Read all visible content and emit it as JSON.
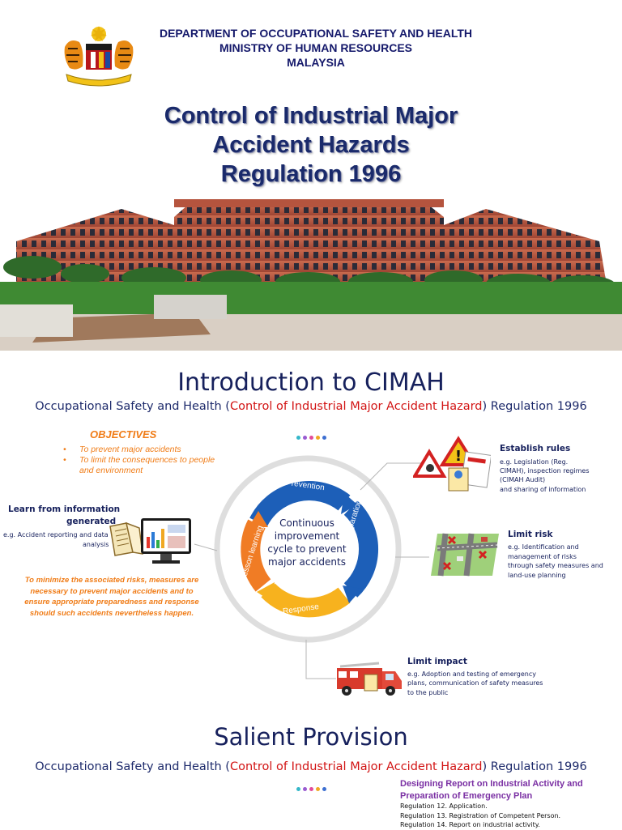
{
  "header": {
    "dept_line1": "DEPARTMENT OF OCCUPATIONAL SAFETY AND HEALTH",
    "dept_line2": "MINISTRY OF HUMAN RESOURCES",
    "dept_line3": "MALAYSIA",
    "title_line1": "Control of Industrial Major",
    "title_line2": "Accident Hazards",
    "title_line3": "Regulation 1996"
  },
  "intro": {
    "heading": "Introduction to CIMAH",
    "subtitle_pre": "Occupational Safety and Health (",
    "subtitle_red": "Control of Industrial Major Accident Hazard",
    "subtitle_post": ") Regulation 1996",
    "objectives_title": "OBJECTIVES",
    "objectives": [
      "To prevent major accidents",
      "To limit the consequences to people and environment"
    ],
    "minimize_text": "To minimize the associated risks, measures are necessary to prevent major accidents and to ensure appropriate preparedness and response should such accidents nevertheless happen.",
    "cycle_center": "Continuous improvement cycle to prevent major accidents",
    "cycle_labels": {
      "prevention": "Prevention",
      "preparation": "Preparation",
      "response": "Response",
      "lesson": "Lesson learning"
    },
    "learn_title_1": "Learn from information",
    "learn_title_2": "generated",
    "learn_text_1": "e.g. Accident reporting and data",
    "learn_text_2": "analysis",
    "establish_title": "Establish rules",
    "establish_text": [
      "e.g. Legislation (Reg.",
      "CIMAH), inspection regimes",
      "(CIMAH Audit)",
      "and sharing of information"
    ],
    "limit_risk_title": "Limit risk",
    "limit_risk_text": [
      "e.g. Identification and",
      "management of risks",
      "through safety measures and",
      "land-use planning"
    ],
    "limit_impact_title": "Limit impact",
    "limit_impact_text": [
      "e.g. Adoption and testing of emergency",
      "plans, communication of safety measures",
      "to the public"
    ]
  },
  "salient": {
    "heading": "Salient Provision",
    "subtitle_pre": "Occupational Safety and Health (",
    "subtitle_red": "Control of Industrial Major Accident Hazard",
    "subtitle_post": ") Regulation 1996",
    "report_title": "Designing Report on Industrial Activity and Preparation of Emergency Plan",
    "regulations": [
      "Regulation 12. Application.",
      "Regulation 13. Registration of Competent Person.",
      "Regulation 14. Report on industrial activity."
    ]
  },
  "colors": {
    "navy": "#16205c",
    "orange": "#f07c17",
    "red": "#d21414",
    "purple": "#7a2fa3",
    "cycle_blue": "#1d5fb8",
    "cycle_yellow": "#f7b21e",
    "cycle_orange": "#f07c25"
  },
  "icons": [
    "coat-of-arms-icon",
    "building-photo",
    "hazard-signs-icon",
    "map-icon",
    "fire-truck-icon",
    "computer-chart-icon",
    "book-icon"
  ]
}
